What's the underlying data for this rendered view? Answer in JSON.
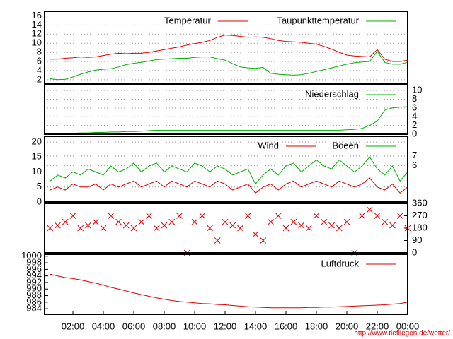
{
  "chart_data": [
    {
      "type": "line",
      "x": [
        0.5,
        1,
        1.5,
        2,
        2.5,
        3,
        3.5,
        4,
        4.5,
        5,
        5.5,
        6,
        6.5,
        7,
        7.5,
        8,
        8.5,
        9,
        9.5,
        10,
        10.5,
        11,
        11.5,
        12,
        12.5,
        13,
        13.5,
        14,
        14.5,
        15,
        15.5,
        16,
        16.5,
        17,
        17.5,
        18,
        18.5,
        19,
        19.5,
        20,
        20.5,
        21,
        21.5,
        22,
        22.5,
        23,
        23.5,
        24
      ],
      "xlim": [
        0.14,
        24
      ],
      "ylim": [
        1.2,
        17
      ],
      "yticks": [
        2,
        4,
        6,
        8,
        10,
        12,
        14,
        16
      ],
      "grid": true,
      "series": [
        {
          "name": "Temperatur",
          "color": "#e00000",
          "values": [
            6.5,
            6.5,
            6.7,
            6.8,
            7.0,
            6.9,
            7.0,
            7.3,
            7.6,
            7.8,
            7.7,
            7.8,
            7.8,
            8.0,
            8.3,
            8.6,
            8.9,
            9.2,
            9.6,
            9.9,
            10.2,
            10.6,
            11.3,
            11.8,
            11.7,
            11.5,
            11.3,
            11.4,
            11.3,
            11.0,
            10.6,
            10.4,
            10.3,
            10.2,
            10.0,
            9.8,
            9.3,
            8.7,
            8.0,
            7.4,
            7.2,
            7.1,
            7.0,
            8.6,
            6.5,
            6.0,
            6.0,
            6.3
          ]
        },
        {
          "name": "Taupunkttemperatur",
          "color": "#00b000",
          "values": [
            2.2,
            2.0,
            2.1,
            2.6,
            3.2,
            3.7,
            4.1,
            4.3,
            4.4,
            4.8,
            5.3,
            5.6,
            5.8,
            6.1,
            6.4,
            6.5,
            6.6,
            6.7,
            6.7,
            6.9,
            7.0,
            7.0,
            6.6,
            6.3,
            5.5,
            4.8,
            4.6,
            4.5,
            4.7,
            3.4,
            3.2,
            3.1,
            3.0,
            3.1,
            3.4,
            3.8,
            4.2,
            4.6,
            5.0,
            5.4,
            5.7,
            5.9,
            6.0,
            8.2,
            5.8,
            5.4,
            5.4,
            5.8
          ]
        }
      ]
    },
    {
      "type": "line",
      "x": [
        0.5,
        1,
        1.5,
        2,
        2.5,
        3,
        3.5,
        4,
        4.5,
        5,
        5.5,
        6,
        6.5,
        7,
        7.5,
        8,
        8.5,
        9,
        9.5,
        10,
        10.5,
        11,
        11.5,
        12,
        12.5,
        13,
        13.5,
        14,
        14.5,
        15,
        15.5,
        16,
        16.5,
        17,
        17.5,
        18,
        18.5,
        19,
        19.5,
        20,
        20.5,
        21,
        21.5,
        22,
        22.5,
        23,
        23.5,
        24
      ],
      "xlim": [
        0.14,
        24
      ],
      "y2lim": [
        0,
        11.3
      ],
      "y2ticks": [
        0,
        2,
        4,
        6,
        8,
        10
      ],
      "grid": true,
      "series": [
        {
          "name": "Niederschlag",
          "color": "#00b000",
          "axis": "y2",
          "values": [
            null,
            null,
            0.2,
            0.2,
            0.3,
            0.3,
            0.4,
            0.4,
            0.5,
            0.5,
            0.6,
            0.6,
            0.7,
            0.8,
            0.9,
            0.9,
            0.9,
            0.9,
            0.9,
            0.9,
            0.9,
            0.9,
            0.9,
            0.9,
            0.9,
            0.9,
            0.9,
            0.9,
            0.9,
            0.9,
            0.9,
            0.9,
            0.9,
            0.9,
            0.9,
            0.9,
            0.9,
            0.9,
            0.9,
            1.0,
            1.1,
            1.3,
            2.0,
            3.0,
            5.5,
            6.0,
            6.2,
            6.3
          ]
        }
      ]
    },
    {
      "type": "line",
      "x": [
        0.5,
        1,
        1.5,
        2,
        2.5,
        3,
        3.5,
        4,
        4.5,
        5,
        5.5,
        6,
        6.5,
        7,
        7.5,
        8,
        8.5,
        9,
        9.5,
        10,
        10.5,
        11,
        11.5,
        12,
        12.5,
        13,
        13.5,
        14,
        14.5,
        15,
        15.5,
        16,
        16.5,
        17,
        17.5,
        18,
        18.5,
        19,
        19.5,
        20,
        20.5,
        21,
        21.5,
        22,
        22.5,
        23,
        23.5,
        24
      ],
      "xlim": [
        0.14,
        24
      ],
      "ylim": [
        0,
        21.9
      ],
      "yticks": [
        0,
        5,
        10,
        15,
        20
      ],
      "y2lim": [
        2.3,
        9
      ],
      "y2ticks": [
        6,
        7
      ],
      "grid": true,
      "series": [
        {
          "name": "Wind",
          "color": "#e00000",
          "values": [
            4,
            5,
            4,
            6,
            5,
            5,
            6,
            4,
            6,
            5,
            6,
            7,
            5,
            6,
            7,
            5,
            7,
            6,
            5,
            7,
            6,
            5,
            7,
            6,
            4,
            5,
            6,
            3,
            5,
            6,
            4,
            6,
            7,
            5,
            6,
            7,
            6,
            5,
            7,
            6,
            5,
            6,
            8,
            5,
            4,
            6,
            3,
            5
          ]
        },
        {
          "name": "Boeen",
          "color": "#00b000",
          "values": [
            7,
            9,
            8,
            10,
            9,
            11,
            10,
            9,
            12,
            10,
            11,
            13,
            10,
            12,
            13,
            10,
            12,
            11,
            10,
            13,
            12,
            10,
            12,
            11,
            9,
            10,
            11,
            6,
            9,
            11,
            9,
            12,
            13,
            10,
            12,
            14,
            12,
            11,
            14,
            12,
            10,
            12,
            15,
            11,
            9,
            12,
            7,
            10
          ]
        }
      ]
    },
    {
      "type": "scatter",
      "x": [
        0.5,
        1,
        1.5,
        2,
        2.5,
        3,
        3.5,
        4,
        4.5,
        5,
        5.5,
        6,
        6.5,
        7,
        7.5,
        8,
        8.5,
        9,
        9.5,
        10,
        10.5,
        11,
        11.5,
        12,
        12.5,
        13,
        13.5,
        14,
        14.5,
        15,
        15.5,
        16,
        16.5,
        17,
        17.5,
        18,
        18.5,
        19,
        19.5,
        20,
        20.5,
        21,
        21.5,
        22,
        22.5,
        23,
        23.5,
        24
      ],
      "xlim": [
        0.14,
        24
      ],
      "y2lim": [
        0,
        360
      ],
      "y2ticks": [
        0,
        90,
        180,
        270,
        360
      ],
      "grid": false,
      "series": [
        {
          "color": "#e00000",
          "axis": "y2",
          "values": [
            180,
            200,
            225,
            270,
            180,
            200,
            225,
            180,
            270,
            225,
            200,
            180,
            225,
            270,
            180,
            200,
            225,
            270,
            0,
            225,
            270,
            180,
            90,
            225,
            200,
            180,
            270,
            135,
            90,
            225,
            270,
            180,
            225,
            200,
            180,
            270,
            225,
            200,
            180,
            225,
            0,
            270,
            315,
            270,
            225,
            200,
            270,
            180
          ]
        }
      ]
    },
    {
      "type": "line",
      "x": [
        0.5,
        1,
        1.5,
        2,
        2.5,
        3,
        3.5,
        4,
        4.5,
        5,
        5.5,
        6,
        6.5,
        7,
        7.5,
        8,
        8.5,
        9,
        9.5,
        10,
        10.5,
        11,
        11.5,
        12,
        12.5,
        13,
        13.5,
        14,
        14.5,
        15,
        15.5,
        16,
        16.5,
        17,
        17.5,
        18,
        18.5,
        19,
        19.5,
        20,
        20.5,
        21,
        21.5,
        22,
        22.5,
        23,
        23.5,
        24
      ],
      "xlim": [
        0.14,
        24
      ],
      "ylim": [
        982.3,
        1000.6
      ],
      "yticks": [
        984,
        986,
        988,
        990,
        992,
        994,
        996,
        998,
        1000
      ],
      "grid": false,
      "xticks": [
        {
          "value": 2,
          "label": "02:00"
        },
        {
          "value": 4,
          "label": "04:00"
        },
        {
          "value": 6,
          "label": "06:00"
        },
        {
          "value": 8,
          "label": "08:00"
        },
        {
          "value": 10,
          "label": "10:00"
        },
        {
          "value": 12,
          "label": "12:00"
        },
        {
          "value": 14,
          "label": "14:00"
        },
        {
          "value": 16,
          "label": "16:00"
        },
        {
          "value": 18,
          "label": "18:00"
        },
        {
          "value": 20,
          "label": "20:00"
        },
        {
          "value": 22,
          "label": "22:00"
        },
        {
          "value": 24,
          "label": "00:00"
        }
      ],
      "series": [
        {
          "name": "Luftdruck",
          "color": "#e00000",
          "values": [
            994.5,
            994.0,
            993.5,
            993.2,
            992.8,
            992.3,
            991.8,
            991.2,
            990.5,
            990.0,
            989.4,
            988.8,
            988.3,
            987.8,
            987.3,
            986.9,
            986.5,
            986.2,
            986.0,
            985.8,
            985.6,
            985.5,
            985.3,
            985.2,
            985.0,
            984.8,
            984.6,
            984.5,
            984.4,
            984.3,
            984.3,
            984.3,
            984.3,
            984.3,
            984.4,
            984.4,
            984.5,
            984.5,
            984.6,
            984.7,
            984.8,
            984.9,
            985.0,
            985.1,
            985.2,
            985.4,
            985.6,
            986.0
          ]
        }
      ]
    }
  ],
  "footer": {
    "link": "http://www.tiefliegen.de/wetter/"
  }
}
